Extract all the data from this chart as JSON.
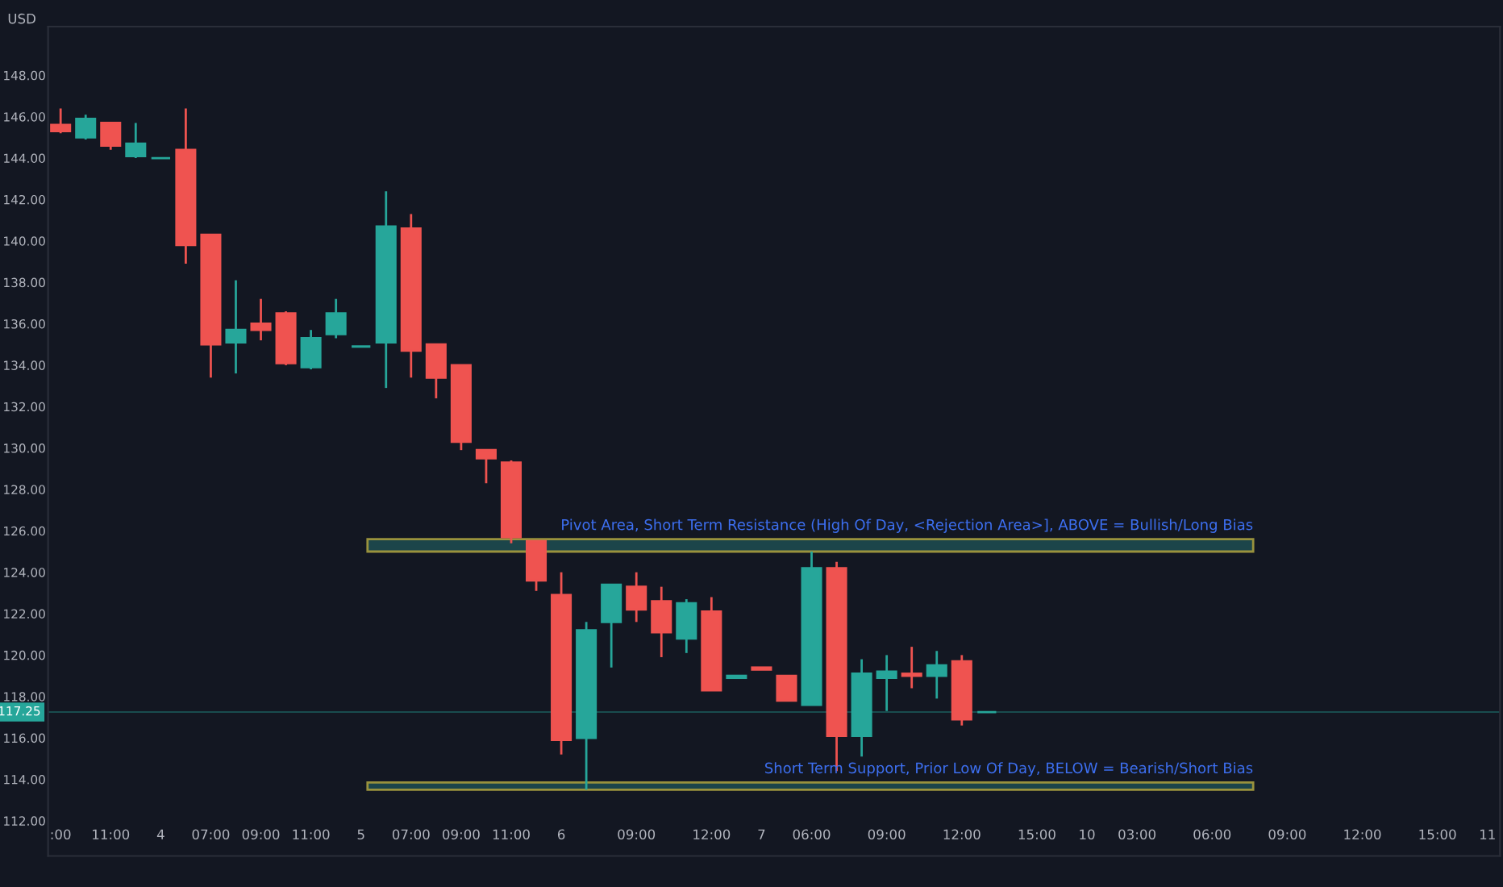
{
  "chart_data": {
    "type": "candlestick",
    "ylabel": "USD",
    "categories": [
      ":00",
      null,
      "11:00",
      null,
      "4",
      null,
      "07:00",
      null,
      "09:00",
      null,
      "11:00",
      null,
      "5",
      null,
      "07:00",
      null,
      "09:00",
      null,
      "11:00",
      null,
      "6",
      null,
      null,
      "09:00",
      null,
      null,
      "12:00",
      null,
      "7",
      null,
      "06:00",
      null,
      null,
      "09:00",
      null,
      null,
      "12:00",
      null,
      null,
      "15:00",
      null,
      "10",
      null,
      "03:00",
      null,
      null,
      "06:00",
      null,
      null,
      "09:00",
      null,
      null,
      "12:00",
      null,
      null,
      "15:00",
      null,
      "11"
    ],
    "ohlc": [
      [
        145.6,
        146.4,
        145.2,
        145.3
      ],
      [
        145.0,
        146.1,
        144.9,
        145.9
      ],
      [
        145.7,
        145.7,
        144.4,
        144.6
      ],
      [
        144.1,
        145.7,
        144.0,
        144.7
      ],
      [
        144.0,
        144.0,
        144.0,
        144.0
      ],
      [
        144.4,
        146.4,
        138.9,
        139.8
      ],
      [
        140.3,
        140.3,
        133.4,
        135.0
      ],
      [
        135.1,
        138.1,
        133.6,
        135.7
      ],
      [
        136.0,
        137.2,
        135.2,
        135.7
      ],
      [
        136.5,
        136.6,
        134.0,
        134.1
      ],
      [
        133.9,
        135.7,
        133.8,
        135.3
      ],
      [
        135.5,
        137.2,
        135.3,
        136.5
      ],
      [
        134.9,
        134.9,
        134.9,
        134.9
      ],
      [
        135.1,
        142.4,
        132.9,
        140.7
      ],
      [
        140.6,
        141.3,
        133.4,
        134.7
      ],
      [
        135.0,
        135.0,
        132.4,
        133.4
      ],
      [
        134.0,
        134.0,
        129.9,
        130.3
      ],
      [
        129.9,
        129.9,
        128.3,
        129.5
      ],
      [
        129.3,
        129.4,
        125.4,
        125.7
      ],
      [
        125.5,
        125.5,
        123.1,
        123.6
      ],
      [
        122.9,
        124.0,
        115.2,
        115.9
      ],
      [
        116.0,
        121.6,
        113.5,
        121.2
      ],
      [
        121.6,
        123.4,
        119.4,
        123.4
      ],
      [
        123.3,
        124.0,
        121.6,
        122.2
      ],
      [
        122.6,
        123.3,
        119.9,
        121.1
      ],
      [
        120.8,
        122.7,
        120.1,
        122.5
      ],
      [
        122.1,
        122.8,
        118.3,
        118.3
      ],
      [
        118.9,
        119.0,
        118.9,
        119.0
      ],
      [
        119.4,
        119.4,
        119.3,
        119.3
      ],
      [
        119.0,
        119.0,
        117.8,
        117.8
      ],
      [
        117.6,
        125.0,
        117.6,
        124.2
      ],
      [
        124.2,
        124.5,
        114.4,
        116.1
      ],
      [
        116.1,
        119.8,
        115.1,
        119.1
      ],
      [
        118.9,
        120.0,
        117.3,
        119.2
      ],
      [
        119.1,
        120.4,
        118.4,
        119.0
      ],
      [
        119.0,
        120.2,
        117.9,
        119.5
      ],
      [
        119.7,
        120.0,
        116.6,
        116.9
      ],
      [
        117.25,
        117.25,
        117.25,
        117.25
      ],
      null,
      null,
      null,
      null,
      null,
      null,
      null,
      null,
      null,
      null,
      null,
      null,
      null,
      null,
      null,
      null,
      null,
      null,
      null,
      null
    ],
    "colors": [
      "#ef5350",
      "#26a69a",
      "#ef5350",
      "#26a69a",
      "#26a69a",
      "#ef5350",
      "#ef5350",
      "#26a69a",
      "#ef5350",
      "#ef5350",
      "#26a69a",
      "#26a69a",
      "#26a69a",
      "#26a69a",
      "#ef5350",
      "#ef5350",
      "#ef5350",
      "#ef5350",
      "#ef5350",
      "#ef5350",
      "#ef5350",
      "#26a69a",
      "#26a69a",
      "#ef5350",
      "#ef5350",
      "#26a69a",
      "#ef5350",
      "#26a69a",
      "#ef5350",
      "#ef5350",
      "#26a69a",
      "#ef5350",
      "#26a69a",
      "#26a69a",
      "#ef5350",
      "#26a69a",
      "#ef5350",
      "#26a69a",
      null,
      null,
      null,
      null,
      null,
      null,
      null,
      null,
      null,
      null,
      null,
      null,
      null,
      null,
      null,
      null,
      null,
      null,
      null,
      null
    ],
    "ylim": [
      110.3,
      150.35
    ],
    "yticks": [
      {
        "value": 112,
        "label": "112.00"
      },
      {
        "value": 114,
        "label": "114.00"
      },
      {
        "value": 116,
        "label": "116.00"
      },
      {
        "value": 118,
        "label": "118.00"
      },
      {
        "value": 120,
        "label": "120.00"
      },
      {
        "value": 122,
        "label": "122.00"
      },
      {
        "value": 124,
        "label": "124.00"
      },
      {
        "value": 126,
        "label": "126.00"
      },
      {
        "value": 128,
        "label": "128.00"
      },
      {
        "value": 130,
        "label": "130.00"
      },
      {
        "value": 132,
        "label": "132.00"
      },
      {
        "value": 134,
        "label": "134.00"
      },
      {
        "value": 136,
        "label": "136.00"
      },
      {
        "value": 138,
        "label": "138.00"
      },
      {
        "value": 140,
        "label": "140.00"
      },
      {
        "value": 142,
        "label": "142.00"
      },
      {
        "value": 144,
        "label": "144.00"
      },
      {
        "value": 146,
        "label": "146.00"
      },
      {
        "value": 148,
        "label": "148.00"
      }
    ],
    "ref_lines": [
      {
        "axis": "y",
        "value": 117.25,
        "label": "117.25",
        "color": "#26a69a"
      }
    ],
    "bands": [
      {
        "axis": "y",
        "from": 125.0,
        "to": 125.6,
        "label": "Pivot Area, Short Term Resistance (High Of Day, <Rejection Area>], ABOVE = Bullish/Long Bias",
        "color": "#1e4a4f"
      },
      {
        "axis": "y",
        "from": 113.5,
        "to": 113.85,
        "label": "Short Term Support, Prior Low Of Day, BELOW = Bearish/Short Bias",
        "color": "#1e4a4f"
      }
    ],
    "grid": false
  }
}
